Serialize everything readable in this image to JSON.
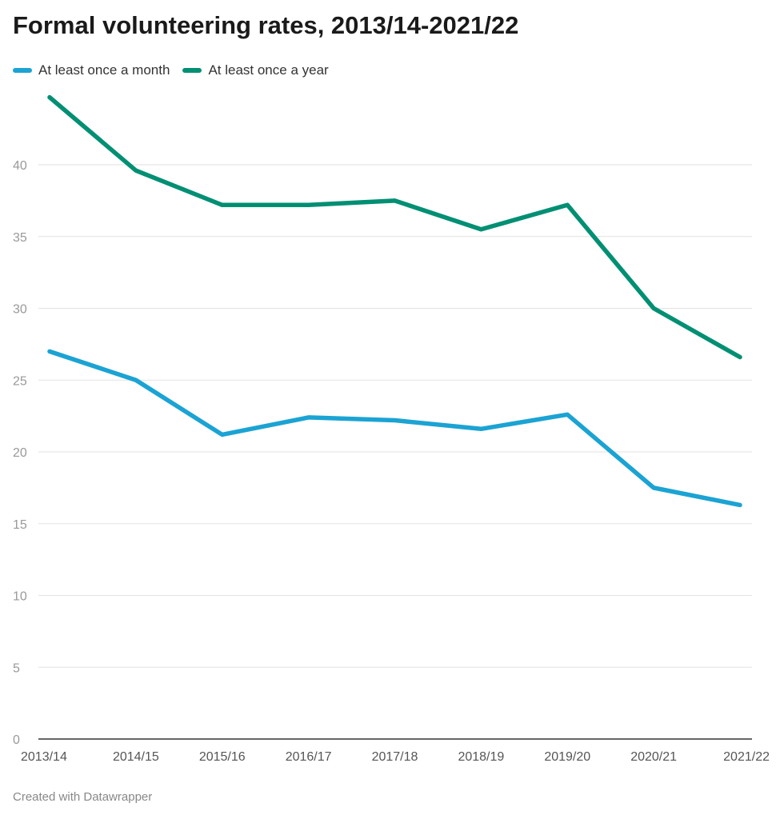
{
  "chart_data": {
    "type": "line",
    "title": "Formal volunteering rates, 2013/14-2021/22",
    "categories": [
      "2013/14",
      "2014/15",
      "2015/16",
      "2016/17",
      "2017/18",
      "2018/19",
      "2019/20",
      "2020/21",
      "2021/22"
    ],
    "series": [
      {
        "name": "At least once a month",
        "color": "#1ba3d3",
        "values": [
          27.0,
          25.0,
          21.2,
          22.4,
          22.2,
          21.6,
          22.6,
          17.5,
          16.3
        ]
      },
      {
        "name": "At least once a year",
        "color": "#008f73",
        "values": [
          44.7,
          39.6,
          37.2,
          37.2,
          37.5,
          35.5,
          37.2,
          30.0,
          26.6
        ]
      }
    ],
    "yticks": [
      0,
      5,
      10,
      15,
      20,
      25,
      30,
      35,
      40
    ],
    "ylim": [
      0,
      44.7
    ],
    "grid": true,
    "legend": "top-left",
    "xlabel": "",
    "ylabel": ""
  },
  "footer": "Created with Datawrapper"
}
